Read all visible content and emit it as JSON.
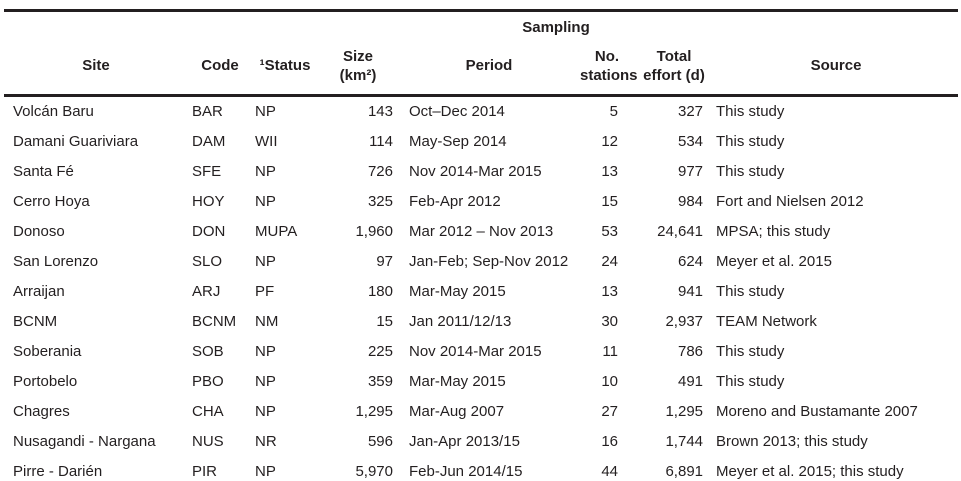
{
  "table": {
    "group_header": "Sampling",
    "columns": [
      {
        "id": "site",
        "lines": [
          "Site"
        ],
        "align": "left"
      },
      {
        "id": "code",
        "lines": [
          "Code"
        ],
        "align": "left"
      },
      {
        "id": "status",
        "lines": [
          "¹Status"
        ],
        "align": "left"
      },
      {
        "id": "size",
        "lines": [
          "Size",
          "(km²)"
        ],
        "align": "right"
      },
      {
        "id": "period",
        "lines": [
          "Period"
        ],
        "align": "left"
      },
      {
        "id": "stations",
        "lines": [
          "No.",
          "stations"
        ],
        "align": "right"
      },
      {
        "id": "effort",
        "lines": [
          "Total",
          "effort (d)"
        ],
        "align": "right"
      },
      {
        "id": "source",
        "lines": [
          "Source"
        ],
        "align": "left"
      }
    ],
    "rows": [
      [
        "Volcán Baru",
        "BAR",
        "NP",
        "143",
        "Oct–Dec 2014",
        "5",
        "327",
        "This study"
      ],
      [
        "Damani Guariviara",
        "DAM",
        "WII",
        "114",
        "May-Sep 2014",
        "12",
        "534",
        "This study"
      ],
      [
        "Santa Fé",
        "SFE",
        "NP",
        "726",
        "Nov 2014-Mar 2015",
        "13",
        "977",
        "This study"
      ],
      [
        "Cerro Hoya",
        "HOY",
        "NP",
        "325",
        "Feb-Apr 2012",
        "15",
        "984",
        "Fort and Nielsen 2012"
      ],
      [
        "Donoso",
        "DON",
        "MUPA",
        "1,960",
        "Mar 2012 – Nov 2013",
        "53",
        "24,641",
        "MPSA; this study"
      ],
      [
        "San Lorenzo",
        "SLO",
        "NP",
        "97",
        "Jan-Feb; Sep-Nov 2012",
        "24",
        "624",
        "Meyer et al. 2015"
      ],
      [
        "Arraijan",
        "ARJ",
        "PF",
        "180",
        "Mar-May 2015",
        "13",
        "941",
        "This study"
      ],
      [
        "BCNM",
        "BCNM",
        "NM",
        "15",
        "Jan 2011/12/13",
        "30",
        "2,937",
        "TEAM Network"
      ],
      [
        "Soberania",
        "SOB",
        "NP",
        "225",
        "Nov 2014-Mar 2015",
        "11",
        "786",
        "This study"
      ],
      [
        "Portobelo",
        "PBO",
        "NP",
        "359",
        "Mar-May 2015",
        "10",
        "491",
        "This study"
      ],
      [
        "Chagres",
        "CHA",
        "NP",
        "1,295",
        "Mar-Aug 2007",
        "27",
        "1,295",
        "Moreno and Bustamante 2007"
      ],
      [
        "Nusagandi - Nargana",
        "NUS",
        "NR",
        "596",
        "Jan-Apr 2013/15",
        "16",
        "1,744",
        "Brown 2013; this study"
      ],
      [
        "Pirre - Darién",
        "PIR",
        "NP",
        "5,970",
        "Feb-Jun 2014/15",
        "44",
        "6,891",
        "Meyer et al. 2015; this study"
      ]
    ],
    "text_color": "#231f20",
    "rule_color": "#231f20"
  }
}
